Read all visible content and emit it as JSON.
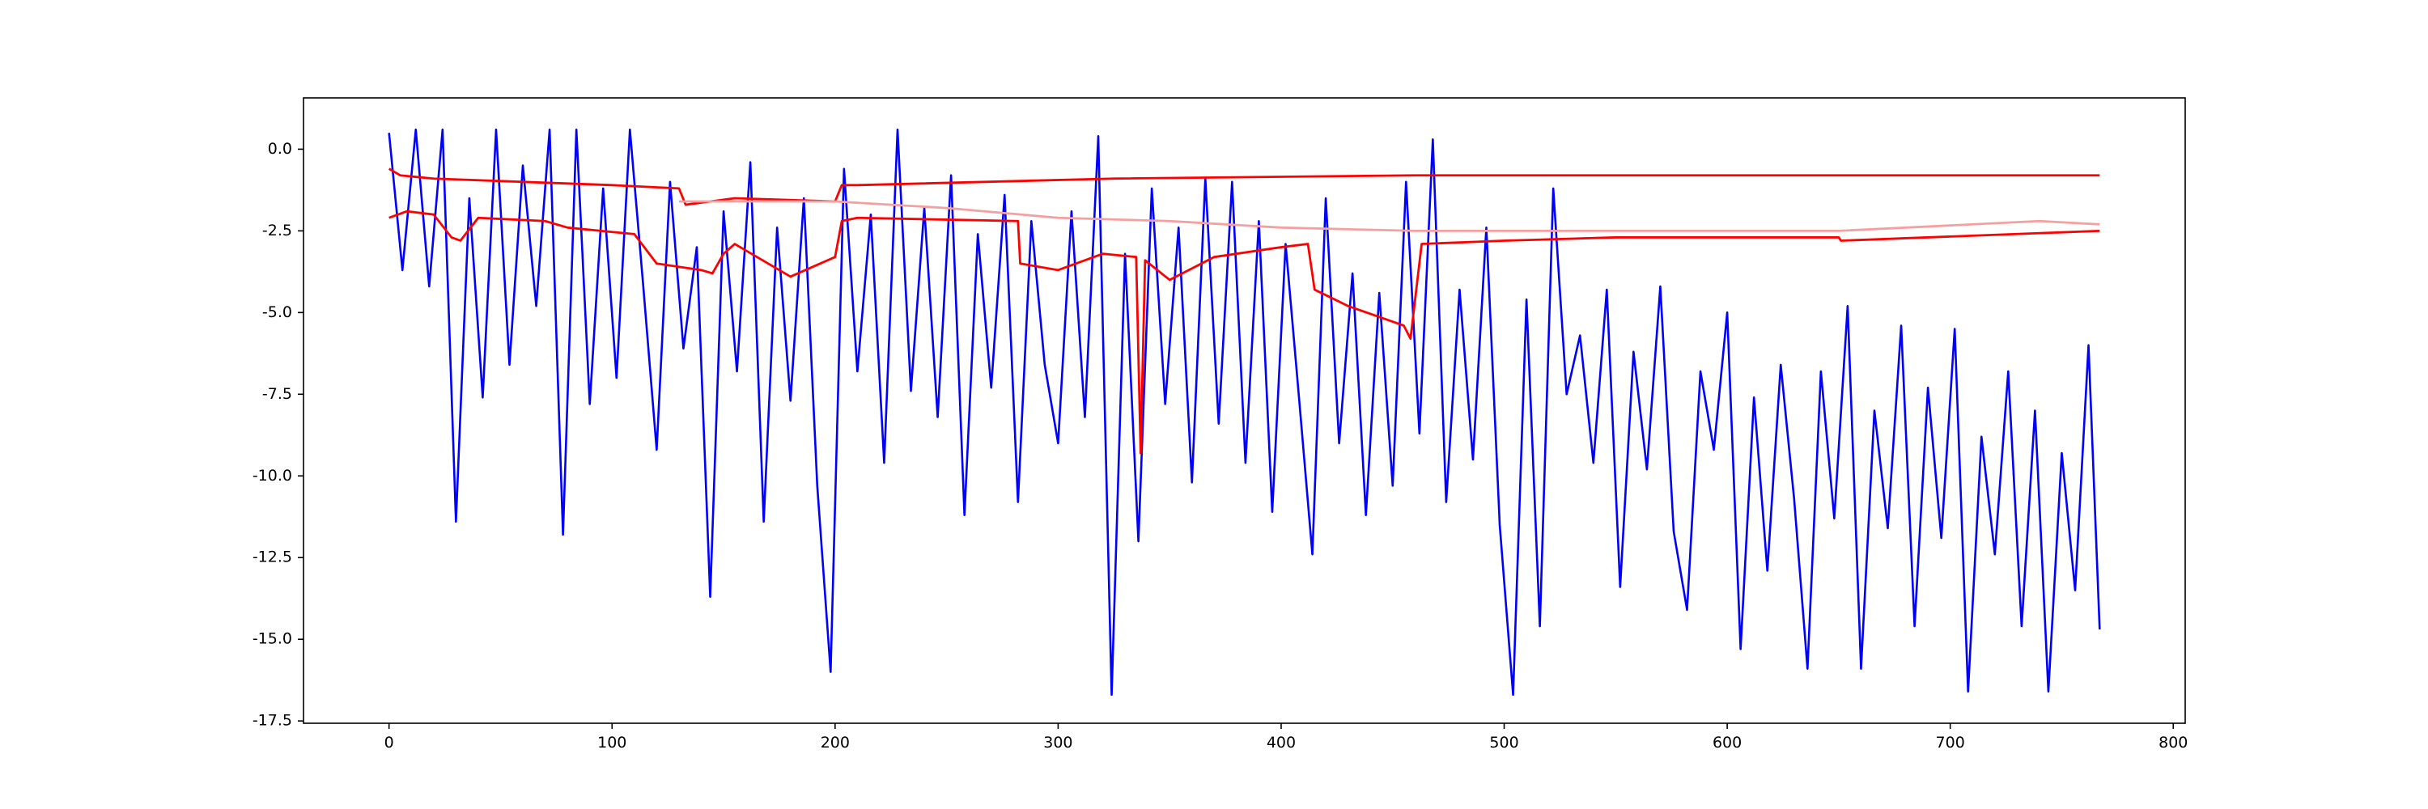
{
  "chart_data": {
    "type": "line",
    "x": [
      0,
      6,
      12,
      18,
      24,
      30,
      36,
      42,
      48,
      54,
      60,
      66,
      72,
      78,
      84,
      90,
      96,
      102,
      108,
      114,
      120,
      126,
      132,
      138,
      144,
      150,
      156,
      162,
      168,
      174,
      180,
      186,
      192,
      198,
      204,
      210,
      216,
      222,
      228,
      234,
      240,
      246,
      252,
      258,
      264,
      270,
      276,
      282,
      288,
      294,
      300,
      306,
      312,
      318,
      324,
      330,
      336,
      342,
      348,
      354,
      360,
      366,
      372,
      378,
      384,
      390,
      396,
      402,
      408,
      414,
      420,
      426,
      432,
      438,
      444,
      450,
      456,
      462,
      468,
      474,
      480,
      486,
      492,
      498,
      504,
      510,
      516,
      522,
      528,
      534,
      540,
      546,
      552,
      558,
      564,
      570,
      576,
      582,
      588,
      594,
      600,
      606,
      612,
      618,
      624,
      630,
      636,
      642,
      648,
      654,
      660,
      666,
      672,
      678,
      684,
      690,
      696,
      702,
      708,
      714,
      720,
      726,
      732,
      738,
      744,
      750,
      756,
      762,
      767
    ],
    "series": [
      {
        "color": "#0000ff",
        "values": [
          0.5,
          -3.7,
          0.6,
          -4.2,
          0.6,
          -11.4,
          -1.5,
          -7.6,
          0.6,
          -6.6,
          -0.5,
          -4.8,
          0.6,
          -11.8,
          0.6,
          -7.8,
          -1.2,
          -7.0,
          0.6,
          -4.2,
          -9.2,
          -1.0,
          -6.1,
          -3.0,
          -13.7,
          -1.9,
          -6.8,
          -0.4,
          -11.4,
          -2.4,
          -7.7,
          -1.5,
          -10.3,
          -16.0,
          -0.6,
          -6.8,
          -2.0,
          -9.6,
          0.6,
          -7.4,
          -1.8,
          -8.2,
          -0.8,
          -11.2,
          -2.6,
          -7.3,
          -1.4,
          -10.8,
          -2.2,
          -6.6,
          -9.0,
          -1.9,
          -8.2,
          0.4,
          -16.7,
          -3.2,
          -12.0,
          -1.2,
          -7.8,
          -2.4,
          -10.2,
          -0.9,
          -8.4,
          -1.0,
          -9.6,
          -2.2,
          -11.1,
          -2.9,
          -7.6,
          -12.4,
          -1.5,
          -9.0,
          -3.8,
          -11.2,
          -4.4,
          -10.3,
          -1.0,
          -8.7,
          0.3,
          -10.8,
          -4.3,
          -9.5,
          -2.4,
          -11.5,
          -16.7,
          -4.6,
          -14.6,
          -1.2,
          -7.5,
          -5.7,
          -9.6,
          -4.3,
          -13.4,
          -6.2,
          -9.8,
          -4.2,
          -11.7,
          -14.1,
          -6.8,
          -9.2,
          -5.0,
          -15.3,
          -7.6,
          -12.9,
          -6.6,
          -10.7,
          -15.9,
          -6.8,
          -11.3,
          -4.8,
          -15.9,
          -8.0,
          -11.6,
          -5.4,
          -14.6,
          -7.3,
          -11.9,
          -5.5,
          -16.6,
          -8.8,
          -12.4,
          -6.8,
          -14.6,
          -8.0,
          -16.6,
          -9.3,
          -13.5,
          -6.0,
          -14.7
        ]
      },
      {
        "color": "#ff0000",
        "x": [
          0,
          5,
          20,
          60,
          100,
          130,
          133,
          155,
          200,
          203,
          210,
          325,
          460,
          767
        ],
        "values": [
          -0.6,
          -0.8,
          -0.9,
          -1.0,
          -1.1,
          -1.2,
          -1.7,
          -1.5,
          -1.6,
          -1.1,
          -1.1,
          -0.9,
          -0.8,
          -0.8
        ]
      },
      {
        "color": "#ff0000",
        "x": [
          0,
          8,
          20,
          28,
          32,
          40,
          70,
          80,
          110,
          120,
          140,
          145,
          150,
          155,
          180,
          200,
          203,
          210,
          282,
          283,
          300,
          320,
          335,
          337,
          339,
          350,
          370,
          400,
          412,
          415,
          430,
          455,
          458,
          463,
          500,
          550,
          650,
          651,
          767
        ],
        "values": [
          -2.1,
          -1.9,
          -2.0,
          -2.7,
          -2.8,
          -2.1,
          -2.2,
          -2.4,
          -2.6,
          -3.5,
          -3.7,
          -3.8,
          -3.2,
          -2.9,
          -3.9,
          -3.3,
          -2.2,
          -2.1,
          -2.2,
          -3.5,
          -3.7,
          -3.2,
          -3.3,
          -9.3,
          -3.4,
          -4.0,
          -3.3,
          -3.0,
          -2.9,
          -4.3,
          -4.8,
          -5.4,
          -5.8,
          -2.9,
          -2.8,
          -2.7,
          -2.7,
          -2.8,
          -2.5
        ]
      },
      {
        "color": "#f4a0a0",
        "x": [
          130,
          200,
          250,
          300,
          350,
          400,
          460,
          550,
          650,
          740,
          767
        ],
        "values": [
          -1.6,
          -1.6,
          -1.8,
          -2.1,
          -2.2,
          -2.4,
          -2.5,
          -2.5,
          -2.5,
          -2.2,
          -2.3
        ]
      }
    ],
    "xlim": [
      -38.35,
      805.35
    ],
    "ylim": [
      -17.57,
      1.57
    ],
    "xticks": [
      0,
      100,
      200,
      300,
      400,
      500,
      600,
      700,
      800
    ],
    "yticks": [
      {
        "value": 0,
        "label": "0.0"
      },
      -2.5,
      {
        "value": -5,
        "label": "-5.0"
      },
      -7.5,
      {
        "value": -10,
        "label": "-10.0"
      },
      -12.5,
      {
        "value": -15,
        "label": "-15.0"
      },
      -17.5
    ]
  }
}
